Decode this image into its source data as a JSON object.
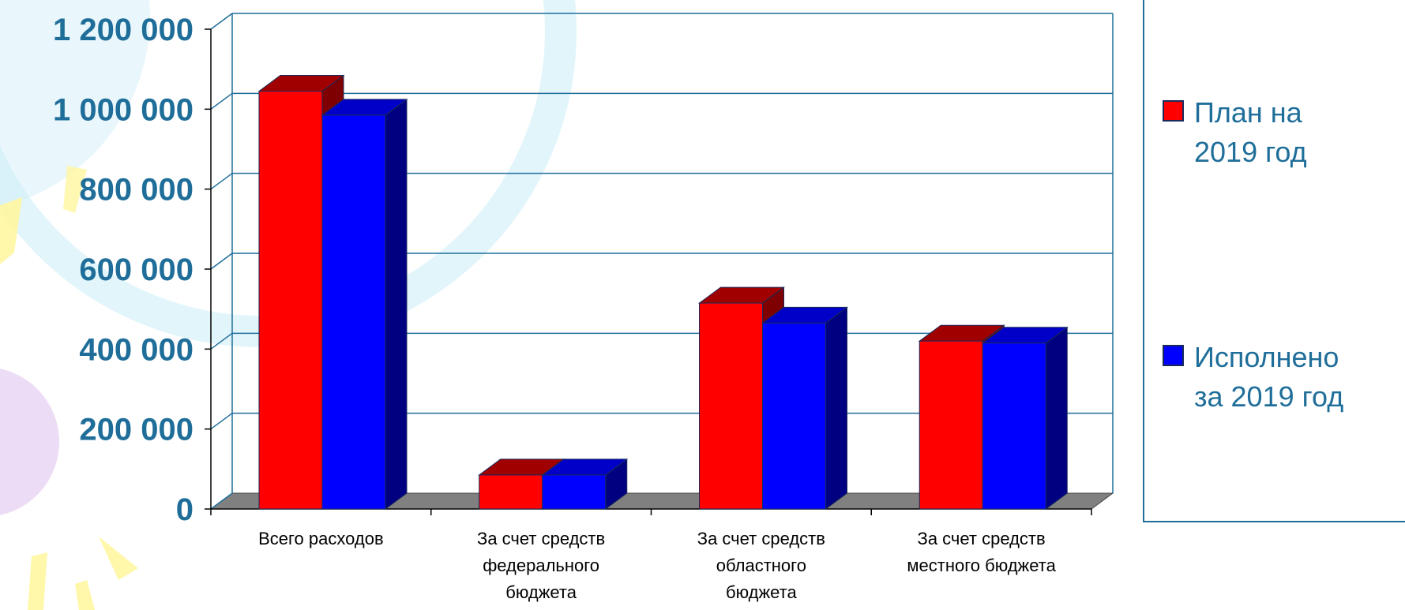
{
  "chart_data": {
    "type": "bar",
    "categories": [
      [
        "Всего расходов"
      ],
      [
        "За счет средств",
        "федерального",
        "бюджета"
      ],
      [
        "За счет средств",
        "областного",
        "бюджета"
      ],
      [
        "За счет средств",
        "местного бюджета"
      ]
    ],
    "series": [
      {
        "name": [
          "План на",
          "2019 год"
        ],
        "values": [
          1045000,
          85000,
          515000,
          420000
        ],
        "color": "#ff0000",
        "side_color": "#7f0000",
        "top_color": "#a00000"
      },
      {
        "name": [
          "Исполнено",
          "за 2019 год"
        ],
        "values": [
          985000,
          85000,
          465000,
          415000
        ],
        "color": "#0000ff",
        "side_color": "#000080",
        "top_color": "#0000c8"
      }
    ],
    "y_ticks": [
      "0",
      "200 000",
      "400 000",
      "600 000",
      "800 000",
      "1 000 000",
      "1 200 000"
    ],
    "ylim": [
      0,
      1200000
    ],
    "grid": true,
    "legend_position": "right",
    "colors": {
      "axis_text": "#1f6e9a",
      "grid": "#1f6e9a",
      "floor": "#808080"
    }
  }
}
